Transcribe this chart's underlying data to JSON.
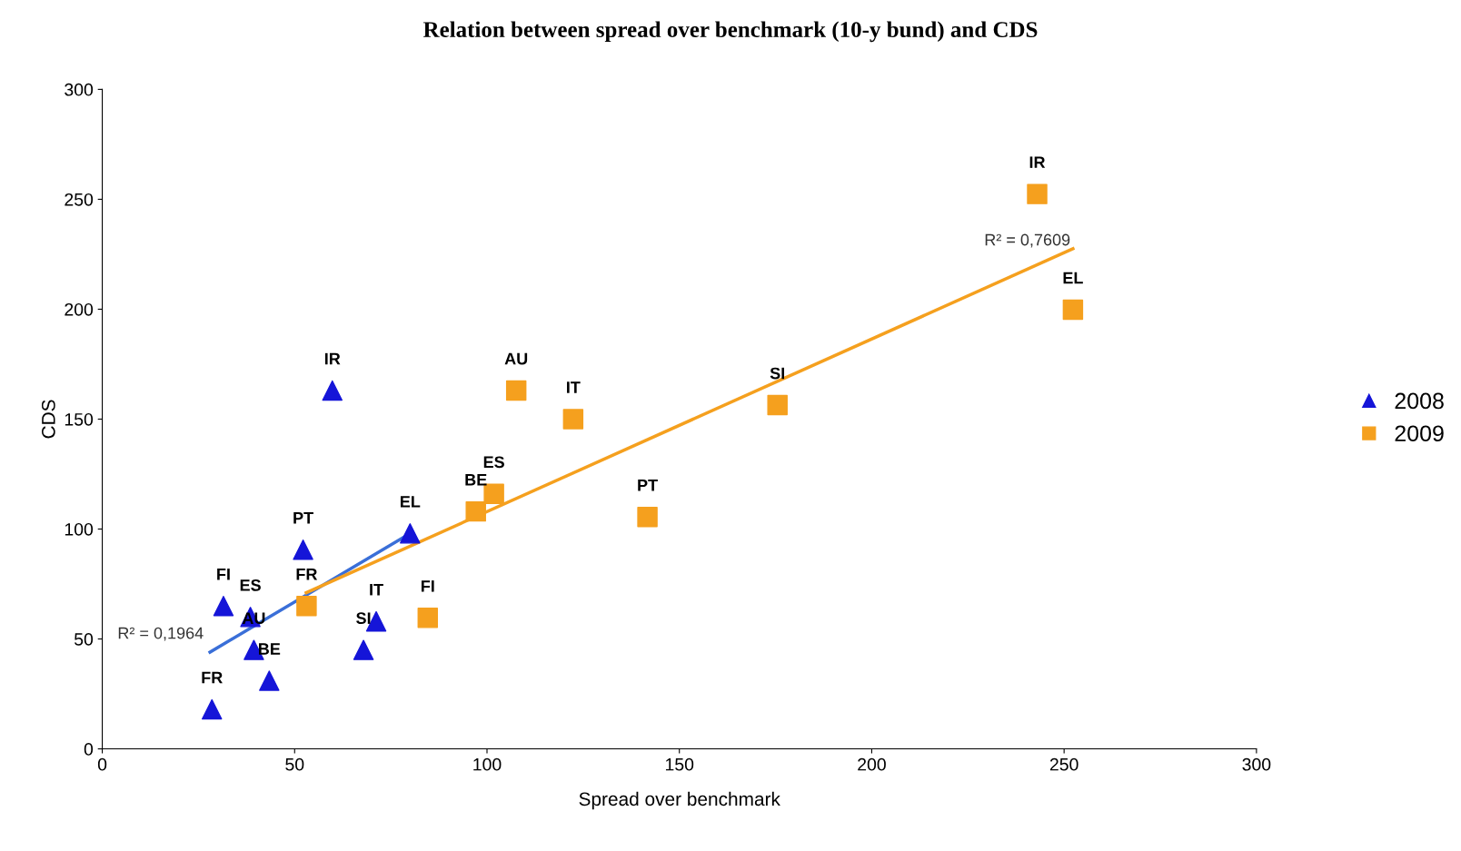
{
  "chart_data": {
    "type": "scatter",
    "title": "Relation between spread over benchmark (10-y bund) and CDS",
    "xlabel": "Spread over benchmark",
    "ylabel": "CDS",
    "xlim": [
      0,
      300
    ],
    "xticks": [
      0,
      50,
      100,
      150,
      200,
      250,
      300
    ],
    "ylim": [
      0,
      300
    ],
    "yticks": [
      0,
      50,
      100,
      150,
      200,
      250,
      300
    ],
    "grid": false,
    "legend": "right",
    "series": [
      {
        "name": "2008",
        "color": "#1515d8",
        "marker": "triangle",
        "x": [
          28.5,
          31.5,
          38.5,
          39.4,
          43.4,
          52.2,
          59.8,
          67.9,
          71.2,
          80
        ],
        "values": [
          18,
          65,
          60,
          45,
          31,
          90.6,
          163,
          45,
          58,
          98
        ]
      },
      {
        "name": "2009",
        "color": "#f5a01e",
        "marker": "square",
        "x": [
          53.1,
          84.6,
          97.1,
          101.8,
          107.6,
          122.4,
          141.7,
          175.5,
          243,
          252.3
        ],
        "values": [
          65,
          59.6,
          108,
          116,
          163,
          150,
          105.5,
          156.4,
          252.4,
          199.8
        ]
      },
      {
        "type": "line",
        "color": "#3a6fd8",
        "x": [
          28,
          80
        ],
        "values": [
          44,
          98
        ]
      },
      {
        "type": "line",
        "color": "#f5a01e",
        "x": [
          53,
          252.3
        ],
        "values": [
          71,
          227.5
        ]
      }
    ],
    "annotations": [
      {
        "text": "FR",
        "x": 28.5,
        "y": 18
      },
      {
        "text": "FI",
        "x": 31.5,
        "y": 65
      },
      {
        "text": "ES",
        "x": 38.5,
        "y": 60
      },
      {
        "text": "AU",
        "x": 39.4,
        "y": 45
      },
      {
        "text": "BE",
        "x": 43.4,
        "y": 31
      },
      {
        "text": "PT",
        "x": 52.2,
        "y": 90.6
      },
      {
        "text": "IR",
        "x": 59.8,
        "y": 163
      },
      {
        "text": "SI",
        "x": 67.9,
        "y": 45
      },
      {
        "text": "IT",
        "x": 71.2,
        "y": 58
      },
      {
        "text": "EL",
        "x": 80,
        "y": 98
      },
      {
        "text": "FR",
        "x": 53.1,
        "y": 65
      },
      {
        "text": "FI",
        "x": 84.6,
        "y": 59.6
      },
      {
        "text": "BE",
        "x": 97.1,
        "y": 108
      },
      {
        "text": "ES",
        "x": 101.8,
        "y": 116
      },
      {
        "text": "AU",
        "x": 107.6,
        "y": 163
      },
      {
        "text": "IT",
        "x": 122.4,
        "y": 150
      },
      {
        "text": "PT",
        "x": 141.7,
        "y": 105.5
      },
      {
        "text": "SI",
        "x": 175.5,
        "y": 156.4
      },
      {
        "text": "IR",
        "x": 243,
        "y": 252.4
      },
      {
        "text": "EL",
        "x": 252.3,
        "y": 199.8
      },
      "R² = 0,1964",
      "R² = 0,7609"
    ]
  }
}
